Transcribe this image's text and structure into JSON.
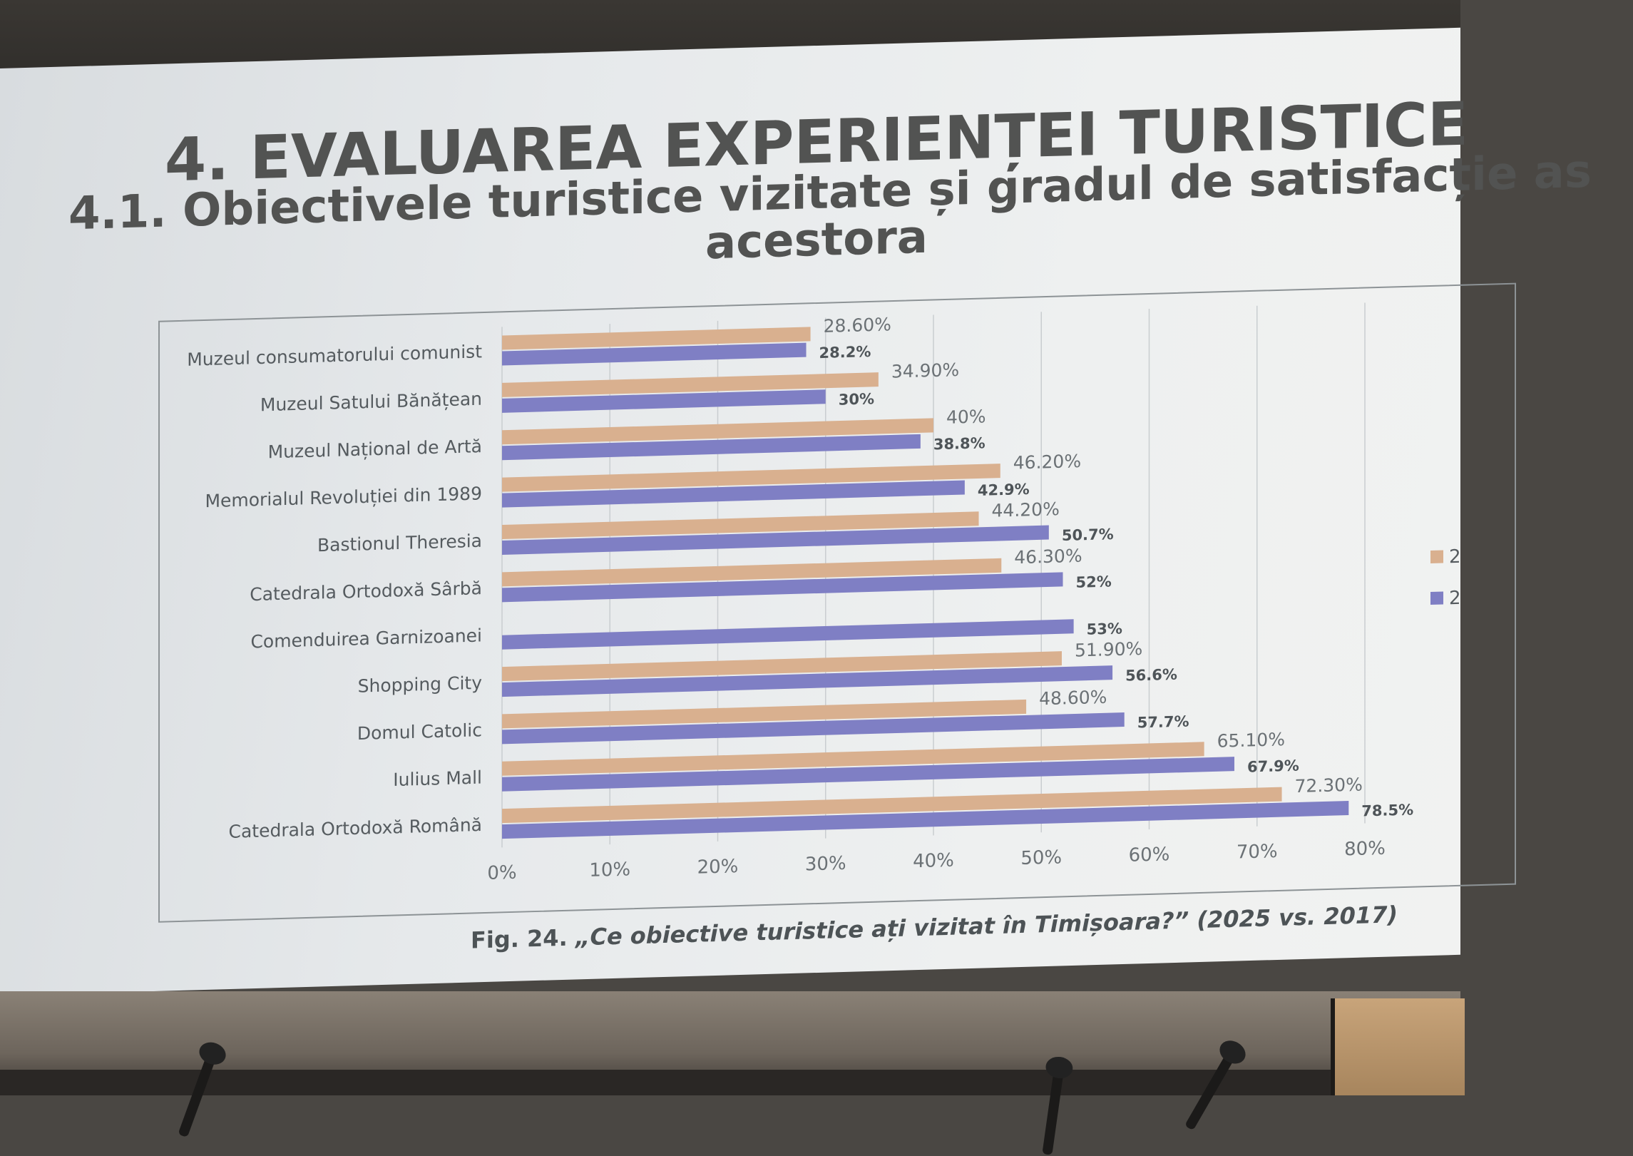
{
  "slide": {
    "title": "4. EVALUAREA EXPERIENȚEI TURISTICE",
    "subtitle_line1": "4.1. Obiectivele turistice vizitate și gradul de satisfacție as",
    "subtitle_line2": "acestora",
    "caption_number": "Fig. 24.",
    "caption_text": "„Ce obiective turistice ați vizitat în Timișoara?” (2025 vs. 2017)"
  },
  "chart_data": {
    "type": "bar",
    "orientation": "horizontal",
    "categories": [
      "Muzeul consumatorului comunist",
      "Muzeul Satului Bănățean",
      "Muzeul Național de Artă",
      "Memorialul Revoluției din 1989",
      "Bastionul Theresia",
      "Catedrala Ortodoxă Sârbă",
      "Comenduirea Garnizoanei",
      "Shopping City",
      "Domul Catolic",
      "Iulius Mall",
      "Catedrala Ortodoxă Română"
    ],
    "series": [
      {
        "color": "#d9b08f",
        "legend_label": "2",
        "values": [
          28.6,
          34.9,
          40,
          46.2,
          44.2,
          46.3,
          null,
          51.9,
          48.6,
          65.1,
          72.3
        ],
        "labels": [
          "28.60%",
          "34.90%",
          "40%",
          "46.20%",
          "44.20%",
          "46.30%",
          "",
          "51.90%",
          "48.60%",
          "65.10%",
          "72.30%"
        ]
      },
      {
        "color": "#7f7fc4",
        "legend_label": "2",
        "values": [
          28.2,
          30,
          38.8,
          42.9,
          50.7,
          52,
          53,
          56.6,
          57.7,
          67.9,
          78.5
        ],
        "labels": [
          "28.2%",
          "30%",
          "38.8%",
          "42.9%",
          "50.7%",
          "52%",
          "53%",
          "56.6%",
          "57.7%",
          "67.9%",
          "78.5%"
        ]
      }
    ],
    "x_ticks": [
      "0%",
      "10%",
      "20%",
      "30%",
      "40%",
      "50%",
      "60%",
      "70%",
      "80%"
    ],
    "xlim": [
      0,
      80
    ],
    "grid": true,
    "legend_placement": "right"
  }
}
